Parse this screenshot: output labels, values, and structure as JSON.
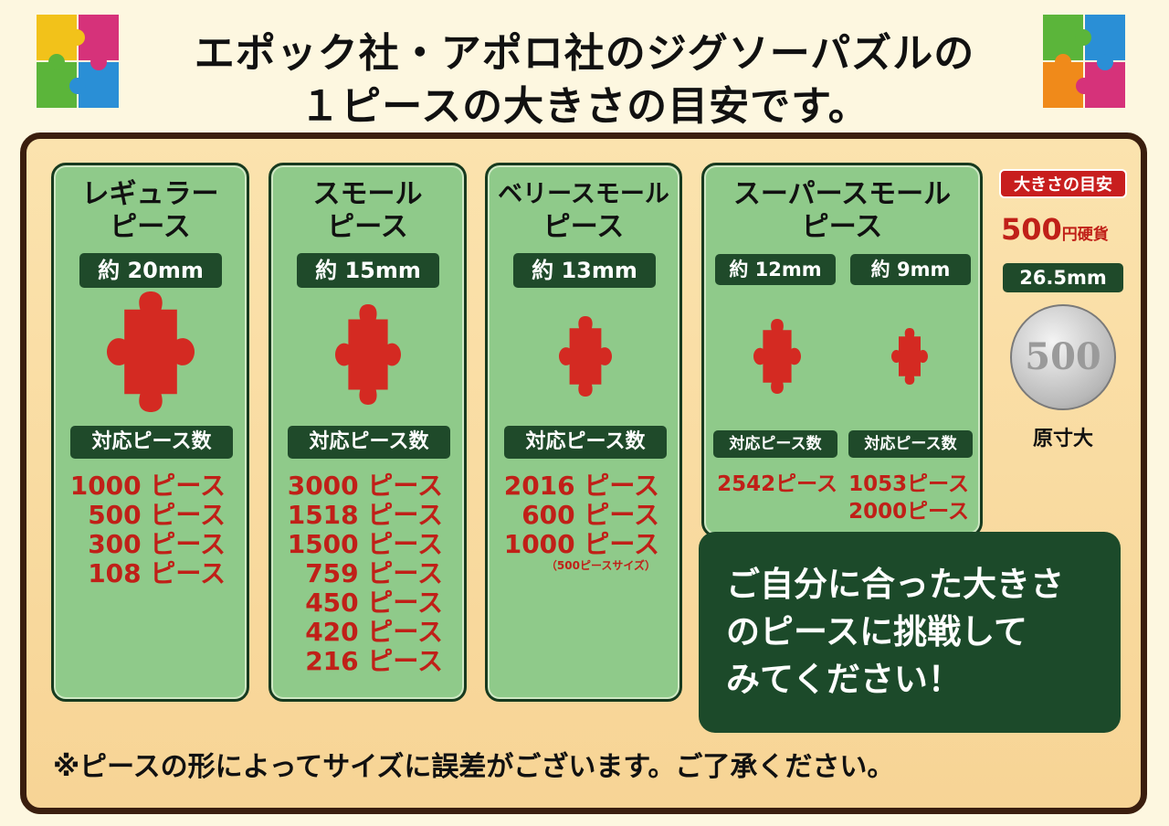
{
  "title": {
    "line1": "エポック社・アポロ社のジグソーパズルの",
    "line2": "１ピースの大きさの目安です。"
  },
  "columns": [
    {
      "name1": "レギュラー",
      "name2": "ピース",
      "size": "約 20mm",
      "count_header": "対応ピース数",
      "counts": [
        "1000 ピース",
        "500 ピース",
        "300 ピース",
        "108 ピース"
      ]
    },
    {
      "name1": "スモール",
      "name2": "ピース",
      "size": "約 15mm",
      "count_header": "対応ピース数",
      "counts": [
        "3000 ピース",
        "1518 ピース",
        "1500 ピース",
        "759 ピース",
        "450 ピース",
        "420 ピース",
        "216 ピース"
      ]
    },
    {
      "name1": "ベリースモール",
      "name2": "ピース",
      "size": "約 13mm",
      "count_header": "対応ピース数",
      "counts": [
        "2016 ピース",
        "600 ピース",
        "1000 ピース"
      ],
      "note": "（500ピースサイズ）"
    },
    {
      "name1": "スーパースモール",
      "name2": "ピース",
      "sub": [
        {
          "size": "約 12mm",
          "count_header": "対応ピース数",
          "counts": [
            "2542ピース"
          ]
        },
        {
          "size": "約 9mm",
          "count_header": "対応ピース数",
          "counts": [
            "1053ピース",
            "2000ピース"
          ]
        }
      ]
    }
  ],
  "reference": {
    "badge": "大きさの目安",
    "coin_label": "500",
    "coin_unit": "円硬貨",
    "size": "26.5mm",
    "coin_face": "500",
    "actual_size": "原寸大"
  },
  "message": {
    "lines": [
      "ご自分に合った大きさ",
      "のピースに挑戦して",
      "みてください！"
    ]
  },
  "footnote": "※ピースの形によってサイズに誤差がございます。ご了承ください。",
  "colors": {
    "piece": "#d42a22",
    "panel": "#8fca8a",
    "dark_green": "#1f4a2a",
    "frame": "#3a1e0e"
  }
}
